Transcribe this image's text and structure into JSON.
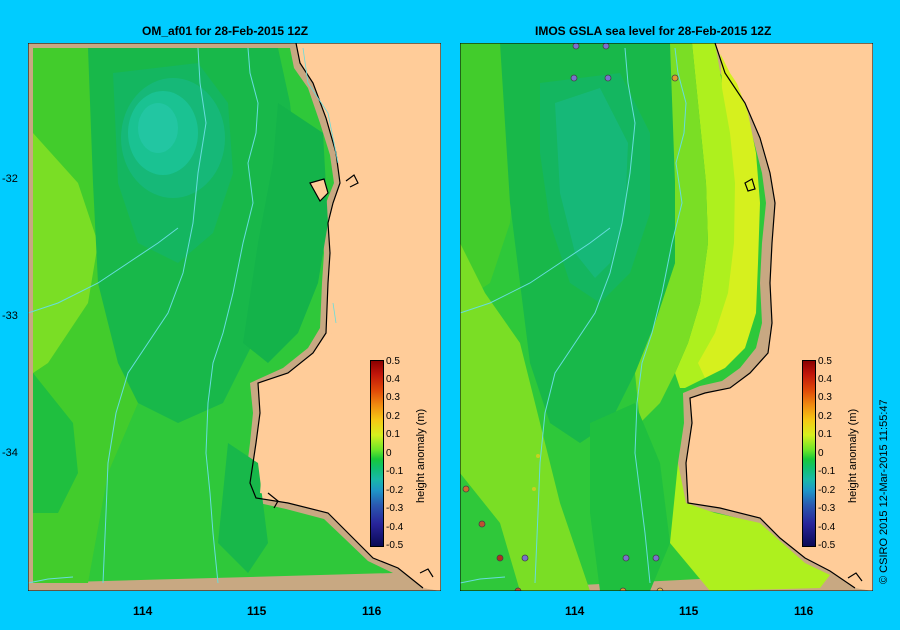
{
  "panels": [
    {
      "title": "OM_af01  for 28-Feb-2015 12Z"
    },
    {
      "title": "IMOS GSLA sea level  for 28-Feb-2015 12Z"
    }
  ],
  "lat_ticks": [
    "-32",
    "-33",
    "-34"
  ],
  "lon_ticks": [
    "114",
    "115",
    "116"
  ],
  "colorbar": {
    "label": "height anomaly (m)",
    "ticks": [
      "0.5",
      "0.4",
      "0.3",
      "0.2",
      "0.1",
      "0",
      "-0.1",
      "-0.2",
      "-0.3",
      "-0.4",
      "-0.5"
    ],
    "min": -0.5,
    "max": 0.5
  },
  "stamp": "© CSIRO 2015   12-Mar-2015 11:55:47",
  "colors": {
    "background": "#00ccff",
    "land": "#ffcc99",
    "coast_shelf": "#c8a882",
    "bathymetry": "#66dddd"
  }
}
